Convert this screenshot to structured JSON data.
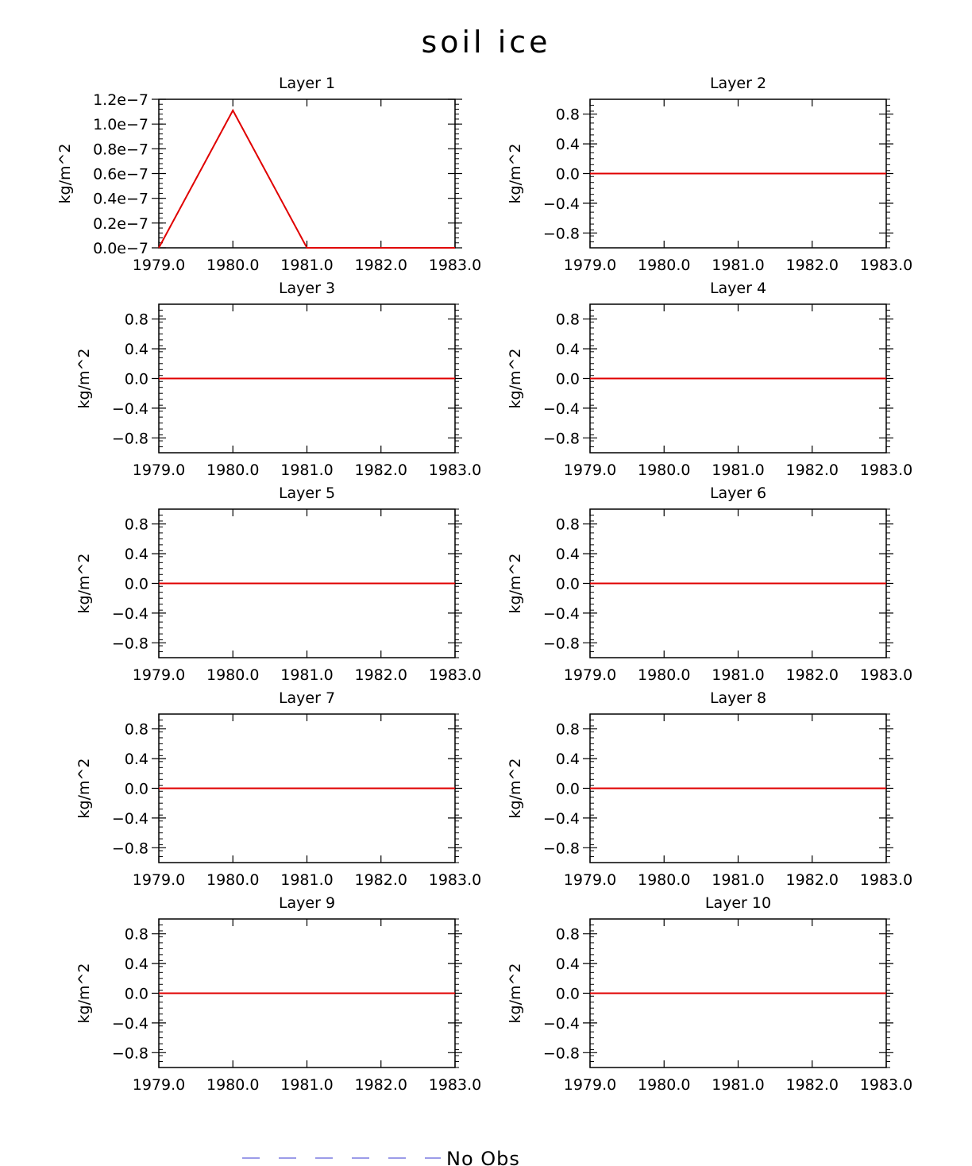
{
  "figure": {
    "title": "soil ice",
    "legend": {
      "label": "No Obs",
      "color": "#7b7be0",
      "style": "dashed",
      "placement": "bottom-center"
    }
  },
  "chart_data": [
    {
      "type": "line",
      "title": "Layer 1",
      "ylabel": "kg/m^2",
      "xlim": [
        1979,
        1983
      ],
      "ylim": [
        0,
        1.2e-07
      ],
      "xticks": [
        1979,
        1980,
        1981,
        1982,
        1983
      ],
      "xtick_labels": [
        "1979.0",
        "1980.0",
        "1981.0",
        "1982.0",
        "1983.0"
      ],
      "yticks": [
        0,
        2e-08,
        4e-08,
        6e-08,
        8e-08,
        1e-07,
        1.2e-07
      ],
      "ytick_labels": [
        "0.0e−7",
        "0.2e−7",
        "0.4e−7",
        "0.6e−7",
        "0.8e−7",
        "1.0e−7",
        "1.2e−7"
      ],
      "series": [
        {
          "color": "#e00000",
          "x": [
            1979,
            1980,
            1981,
            1982,
            1983
          ],
          "y": [
            0,
            1.11e-07,
            0,
            0,
            0
          ]
        }
      ]
    },
    {
      "type": "line",
      "title": "Layer 2",
      "ylabel": "kg/m^2",
      "xlim": [
        1979,
        1983
      ],
      "ylim": [
        -1,
        1
      ],
      "xticks": [
        1979,
        1980,
        1981,
        1982,
        1983
      ],
      "xtick_labels": [
        "1979.0",
        "1980.0",
        "1981.0",
        "1982.0",
        "1983.0"
      ],
      "yticks": [
        -0.8,
        -0.4,
        0,
        0.4,
        0.8
      ],
      "ytick_labels": [
        "−0.8",
        "−0.4",
        "0.0",
        "0.4",
        "0.8"
      ],
      "series": [
        {
          "color": "#e00000",
          "x": [
            1979,
            1980,
            1981,
            1982,
            1983
          ],
          "y": [
            0,
            0,
            0,
            0,
            0
          ]
        }
      ]
    },
    {
      "type": "line",
      "title": "Layer 3",
      "ylabel": "kg/m^2",
      "xlim": [
        1979,
        1983
      ],
      "ylim": [
        -1,
        1
      ],
      "xticks": [
        1979,
        1980,
        1981,
        1982,
        1983
      ],
      "xtick_labels": [
        "1979.0",
        "1980.0",
        "1981.0",
        "1982.0",
        "1983.0"
      ],
      "yticks": [
        -0.8,
        -0.4,
        0,
        0.4,
        0.8
      ],
      "ytick_labels": [
        "−0.8",
        "−0.4",
        "0.0",
        "0.4",
        "0.8"
      ],
      "series": [
        {
          "color": "#e00000",
          "x": [
            1979,
            1980,
            1981,
            1982,
            1983
          ],
          "y": [
            0,
            0,
            0,
            0,
            0
          ]
        }
      ]
    },
    {
      "type": "line",
      "title": "Layer 4",
      "ylabel": "kg/m^2",
      "xlim": [
        1979,
        1983
      ],
      "ylim": [
        -1,
        1
      ],
      "xticks": [
        1979,
        1980,
        1981,
        1982,
        1983
      ],
      "xtick_labels": [
        "1979.0",
        "1980.0",
        "1981.0",
        "1982.0",
        "1983.0"
      ],
      "yticks": [
        -0.8,
        -0.4,
        0,
        0.4,
        0.8
      ],
      "ytick_labels": [
        "−0.8",
        "−0.4",
        "0.0",
        "0.4",
        "0.8"
      ],
      "series": [
        {
          "color": "#e00000",
          "x": [
            1979,
            1980,
            1981,
            1982,
            1983
          ],
          "y": [
            0,
            0,
            0,
            0,
            0
          ]
        }
      ]
    },
    {
      "type": "line",
      "title": "Layer 5",
      "ylabel": "kg/m^2",
      "xlim": [
        1979,
        1983
      ],
      "ylim": [
        -1,
        1
      ],
      "xticks": [
        1979,
        1980,
        1981,
        1982,
        1983
      ],
      "xtick_labels": [
        "1979.0",
        "1980.0",
        "1981.0",
        "1982.0",
        "1983.0"
      ],
      "yticks": [
        -0.8,
        -0.4,
        0,
        0.4,
        0.8
      ],
      "ytick_labels": [
        "−0.8",
        "−0.4",
        "0.0",
        "0.4",
        "0.8"
      ],
      "series": [
        {
          "color": "#e00000",
          "x": [
            1979,
            1980,
            1981,
            1982,
            1983
          ],
          "y": [
            0,
            0,
            0,
            0,
            0
          ]
        }
      ]
    },
    {
      "type": "line",
      "title": "Layer 6",
      "ylabel": "kg/m^2",
      "xlim": [
        1979,
        1983
      ],
      "ylim": [
        -1,
        1
      ],
      "xticks": [
        1979,
        1980,
        1981,
        1982,
        1983
      ],
      "xtick_labels": [
        "1979.0",
        "1980.0",
        "1981.0",
        "1982.0",
        "1983.0"
      ],
      "yticks": [
        -0.8,
        -0.4,
        0,
        0.4,
        0.8
      ],
      "ytick_labels": [
        "−0.8",
        "−0.4",
        "0.0",
        "0.4",
        "0.8"
      ],
      "series": [
        {
          "color": "#e00000",
          "x": [
            1979,
            1980,
            1981,
            1982,
            1983
          ],
          "y": [
            0,
            0,
            0,
            0,
            0
          ]
        }
      ]
    },
    {
      "type": "line",
      "title": "Layer 7",
      "ylabel": "kg/m^2",
      "xlim": [
        1979,
        1983
      ],
      "ylim": [
        -1,
        1
      ],
      "xticks": [
        1979,
        1980,
        1981,
        1982,
        1983
      ],
      "xtick_labels": [
        "1979.0",
        "1980.0",
        "1981.0",
        "1982.0",
        "1983.0"
      ],
      "yticks": [
        -0.8,
        -0.4,
        0,
        0.4,
        0.8
      ],
      "ytick_labels": [
        "−0.8",
        "−0.4",
        "0.0",
        "0.4",
        "0.8"
      ],
      "series": [
        {
          "color": "#e00000",
          "x": [
            1979,
            1980,
            1981,
            1982,
            1983
          ],
          "y": [
            0,
            0,
            0,
            0,
            0
          ]
        }
      ]
    },
    {
      "type": "line",
      "title": "Layer 8",
      "ylabel": "kg/m^2",
      "xlim": [
        1979,
        1983
      ],
      "ylim": [
        -1,
        1
      ],
      "xticks": [
        1979,
        1980,
        1981,
        1982,
        1983
      ],
      "xtick_labels": [
        "1979.0",
        "1980.0",
        "1981.0",
        "1982.0",
        "1983.0"
      ],
      "yticks": [
        -0.8,
        -0.4,
        0,
        0.4,
        0.8
      ],
      "ytick_labels": [
        "−0.8",
        "−0.4",
        "0.0",
        "0.4",
        "0.8"
      ],
      "series": [
        {
          "color": "#e00000",
          "x": [
            1979,
            1980,
            1981,
            1982,
            1983
          ],
          "y": [
            0,
            0,
            0,
            0,
            0
          ]
        }
      ]
    },
    {
      "type": "line",
      "title": "Layer 9",
      "ylabel": "kg/m^2",
      "xlim": [
        1979,
        1983
      ],
      "ylim": [
        -1,
        1
      ],
      "xticks": [
        1979,
        1980,
        1981,
        1982,
        1983
      ],
      "xtick_labels": [
        "1979.0",
        "1980.0",
        "1981.0",
        "1982.0",
        "1983.0"
      ],
      "yticks": [
        -0.8,
        -0.4,
        0,
        0.4,
        0.8
      ],
      "ytick_labels": [
        "−0.8",
        "−0.4",
        "0.0",
        "0.4",
        "0.8"
      ],
      "series": [
        {
          "color": "#e00000",
          "x": [
            1979,
            1980,
            1981,
            1982,
            1983
          ],
          "y": [
            0,
            0,
            0,
            0,
            0
          ]
        }
      ]
    },
    {
      "type": "line",
      "title": "Layer 10",
      "ylabel": "kg/m^2",
      "xlim": [
        1979,
        1983
      ],
      "ylim": [
        -1,
        1
      ],
      "xticks": [
        1979,
        1980,
        1981,
        1982,
        1983
      ],
      "xtick_labels": [
        "1979.0",
        "1980.0",
        "1981.0",
        "1982.0",
        "1983.0"
      ],
      "yticks": [
        -0.8,
        -0.4,
        0,
        0.4,
        0.8
      ],
      "ytick_labels": [
        "−0.8",
        "−0.4",
        "0.0",
        "0.4",
        "0.8"
      ],
      "series": [
        {
          "color": "#e00000",
          "x": [
            1979,
            1980,
            1981,
            1982,
            1983
          ],
          "y": [
            0,
            0,
            0,
            0,
            0
          ]
        }
      ]
    }
  ]
}
